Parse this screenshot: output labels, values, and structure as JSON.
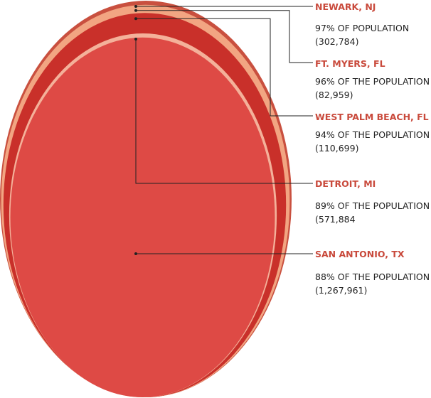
{
  "chart_data": {
    "type": "nested-ellipse",
    "series": [
      {
        "name": "NEWARK, NJ",
        "percent_text": "97% OF POPULATION",
        "count_text": "(302,784)",
        "percent": 97,
        "count": 302784,
        "color": "#c9503f"
      },
      {
        "name": "FT. MYERS, FL",
        "percent_text": " 96% OF THE POPULATION",
        "count_text": "(82,959)",
        "percent": 96,
        "count": 82959,
        "color": "#f2a582"
      },
      {
        "name": "WEST PALM BEACH, FL",
        "percent_text": "94% OF THE POPULATION",
        "count_text": "(110,699)",
        "percent": 94,
        "count": 110699,
        "color": "#c9302a"
      },
      {
        "name": "DETROIT, MI",
        "percent_text": "89% OF THE POPULATION",
        "count_text": "(571,884",
        "percent": 89,
        "count": 571884,
        "color": "#f4b19a"
      },
      {
        "name": "SAN ANTONIO, TX",
        "percent_text": "88% OF THE POPULATION",
        "count_text": "(1,267,961)",
        "percent": 88,
        "count": 1267961,
        "color": "#de4a45"
      }
    ]
  }
}
